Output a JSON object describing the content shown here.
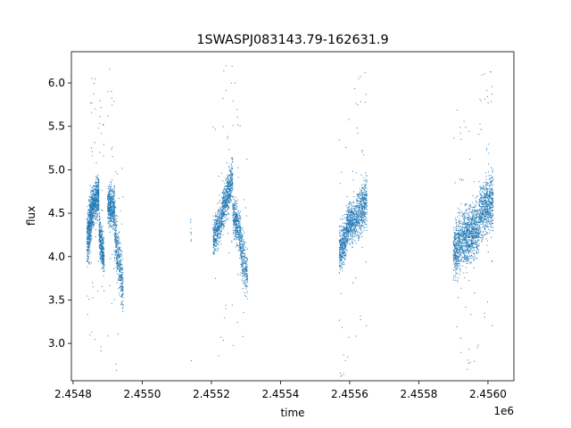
{
  "chart_data": {
    "type": "scatter",
    "title": "1SWASPJ083143.79-162631.9",
    "xlabel": "time",
    "ylabel": "flux",
    "x_offset_label": "1e6",
    "xlim": [
      2454795,
      2456075
    ],
    "ylim": [
      2.57,
      6.36
    ],
    "x_ticks": [
      2454800,
      2455000,
      2455200,
      2455400,
      2455600,
      2455800,
      2456000
    ],
    "x_tick_labels": [
      "2.4548",
      "2.4550",
      "2.4552",
      "2.4554",
      "2.4556",
      "2.4558",
      "2.4560"
    ],
    "y_ticks": [
      3.0,
      3.5,
      4.0,
      4.5,
      5.0,
      5.5,
      6.0
    ],
    "y_tick_labels": [
      "3.0",
      "3.5",
      "4.0",
      "4.5",
      "5.0",
      "5.5",
      "6.0"
    ],
    "grid": false,
    "marker_color": "#1f77b4",
    "series": [
      {
        "clusters": [
          {
            "x_range": [
              2454840,
              2454855
            ],
            "y_center": [
              4.15,
              4.55
            ],
            "spread": 0.28,
            "count": 500
          },
          {
            "x_range": [
              2454855,
              2454875
            ],
            "y_center": [
              4.55,
              4.75
            ],
            "spread": 0.22,
            "count": 500
          },
          {
            "x_range": [
              2454875,
              2454890
            ],
            "y_center": [
              4.3,
              3.95
            ],
            "spread": 0.22,
            "count": 350
          },
          {
            "x_range": [
              2454900,
              2454920
            ],
            "y_center": [
              4.6,
              4.55
            ],
            "spread": 0.22,
            "count": 450
          },
          {
            "x_range": [
              2454920,
              2454945
            ],
            "y_center": [
              4.3,
              3.6
            ],
            "spread": 0.3,
            "count": 400
          },
          {
            "x_range": [
              2455140,
              2455142
            ],
            "y_center": [
              4.4,
              4.15
            ],
            "spread": 0.1,
            "count": 10
          },
          {
            "x_range": [
              2455205,
              2455230
            ],
            "y_center": [
              4.2,
              4.45
            ],
            "spread": 0.2,
            "count": 350
          },
          {
            "x_range": [
              2455230,
              2455262
            ],
            "y_center": [
              4.5,
              4.9
            ],
            "spread": 0.22,
            "count": 550
          },
          {
            "x_range": [
              2455262,
              2455285
            ],
            "y_center": [
              4.5,
              4.25
            ],
            "spread": 0.22,
            "count": 350
          },
          {
            "x_range": [
              2455285,
              2455305
            ],
            "y_center": [
              4.1,
              3.75
            ],
            "spread": 0.28,
            "count": 250
          },
          {
            "x_range": [
              2455570,
              2455590
            ],
            "y_center": [
              4.05,
              4.2
            ],
            "spread": 0.22,
            "count": 350
          },
          {
            "x_range": [
              2455590,
              2455620
            ],
            "y_center": [
              4.35,
              4.45
            ],
            "spread": 0.22,
            "count": 450
          },
          {
            "x_range": [
              2455620,
              2455650
            ],
            "y_center": [
              4.45,
              4.65
            ],
            "spread": 0.26,
            "count": 450
          },
          {
            "x_range": [
              2455900,
              2455935
            ],
            "y_center": [
              4.05,
              4.25
            ],
            "spread": 0.3,
            "count": 550
          },
          {
            "x_range": [
              2455935,
              2455975
            ],
            "y_center": [
              4.2,
              4.35
            ],
            "spread": 0.3,
            "count": 650
          },
          {
            "x_range": [
              2455975,
              2456015
            ],
            "y_center": [
              4.5,
              4.65
            ],
            "spread": 0.3,
            "count": 650
          }
        ]
      }
    ]
  }
}
